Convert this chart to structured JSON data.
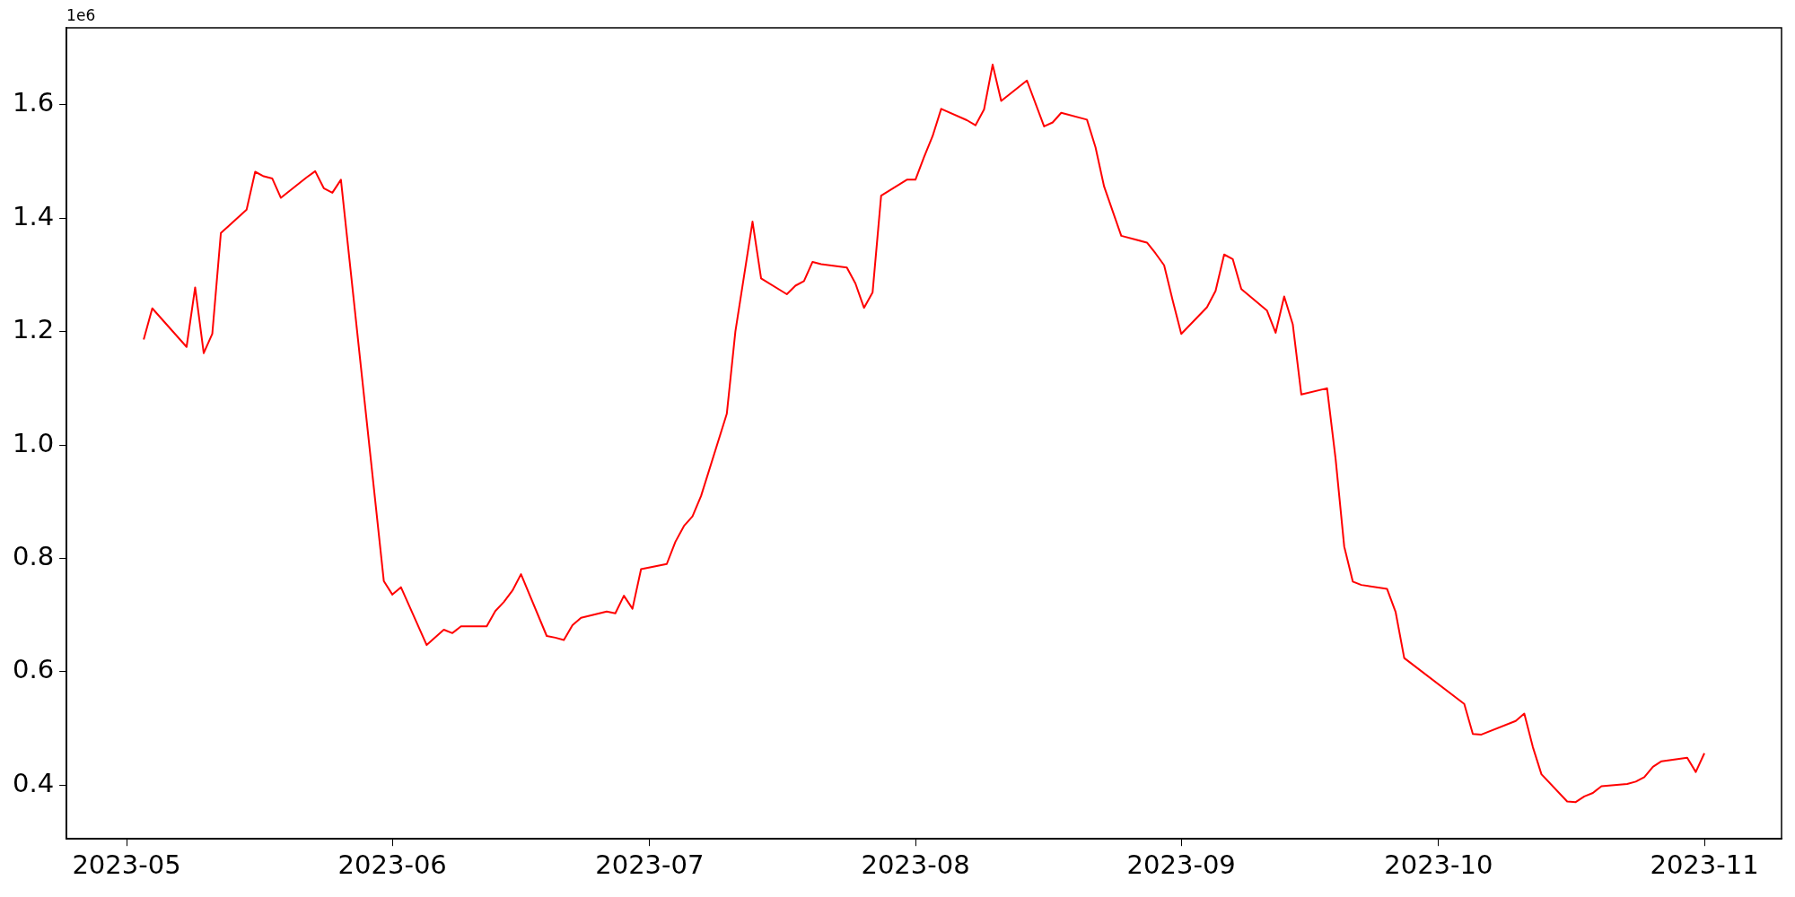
{
  "chart_data": {
    "type": "line",
    "color": "#ff0000",
    "x": [
      "2023-05-03",
      "2023-05-04",
      "2023-05-08",
      "2023-05-09",
      "2023-05-10",
      "2023-05-11",
      "2023-05-12",
      "2023-05-15",
      "2023-05-16",
      "2023-05-17",
      "2023-05-18",
      "2023-05-19",
      "2023-05-22",
      "2023-05-23",
      "2023-05-24",
      "2023-05-25",
      "2023-05-26",
      "2023-05-31",
      "2023-06-01",
      "2023-06-02",
      "2023-06-05",
      "2023-06-07",
      "2023-06-08",
      "2023-06-09",
      "2023-06-12",
      "2023-06-13",
      "2023-06-14",
      "2023-06-15",
      "2023-06-16",
      "2023-06-19",
      "2023-06-20",
      "2023-06-21",
      "2023-06-22",
      "2023-06-23",
      "2023-06-26",
      "2023-06-27",
      "2023-06-28",
      "2023-06-29",
      "2023-06-30",
      "2023-07-03",
      "2023-07-04",
      "2023-07-05",
      "2023-07-06",
      "2023-07-07",
      "2023-07-10",
      "2023-07-11",
      "2023-07-13",
      "2023-07-14",
      "2023-07-17",
      "2023-07-18",
      "2023-07-19",
      "2023-07-20",
      "2023-07-21",
      "2023-07-24",
      "2023-07-25",
      "2023-07-26",
      "2023-07-27",
      "2023-07-28",
      "2023-07-31",
      "2023-08-01",
      "2023-08-02",
      "2023-08-03",
      "2023-08-04",
      "2023-08-07",
      "2023-08-08",
      "2023-08-09",
      "2023-08-10",
      "2023-08-11",
      "2023-08-14",
      "2023-08-16",
      "2023-08-17",
      "2023-08-18",
      "2023-08-21",
      "2023-08-22",
      "2023-08-23",
      "2023-08-25",
      "2023-08-28",
      "2023-08-29",
      "2023-08-30",
      "2023-08-31",
      "2023-09-01",
      "2023-09-04",
      "2023-09-05",
      "2023-09-06",
      "2023-09-07",
      "2023-09-08",
      "2023-09-11",
      "2023-09-12",
      "2023-09-13",
      "2023-09-14",
      "2023-09-15",
      "2023-09-18",
      "2023-09-19",
      "2023-09-20",
      "2023-09-21",
      "2023-09-22",
      "2023-09-25",
      "2023-09-26",
      "2023-09-27",
      "2023-10-04",
      "2023-10-05",
      "2023-10-06",
      "2023-10-10",
      "2023-10-11",
      "2023-10-12",
      "2023-10-13",
      "2023-10-16",
      "2023-10-17",
      "2023-10-18",
      "2023-10-19",
      "2023-10-20",
      "2023-10-23",
      "2023-10-24",
      "2023-10-25",
      "2023-10-26",
      "2023-10-27",
      "2023-10-30",
      "2023-10-31",
      "2023-11-01"
    ],
    "values": [
      1.186,
      1.241,
      1.173,
      1.278,
      1.162,
      1.196,
      1.374,
      1.415,
      1.482,
      1.474,
      1.47,
      1.436,
      1.472,
      1.483,
      1.453,
      1.445,
      1.468,
      0.76,
      0.736,
      0.749,
      0.647,
      0.674,
      0.668,
      0.68,
      0.68,
      0.707,
      0.723,
      0.743,
      0.772,
      0.663,
      0.66,
      0.656,
      0.682,
      0.695,
      0.706,
      0.703,
      0.734,
      0.711,
      0.781,
      0.79,
      0.829,
      0.857,
      0.874,
      0.91,
      1.055,
      1.2,
      1.394,
      1.294,
      1.266,
      1.281,
      1.289,
      1.323,
      1.319,
      1.313,
      1.285,
      1.242,
      1.269,
      1.44,
      1.468,
      1.468,
      1.508,
      1.545,
      1.593,
      1.573,
      1.564,
      1.592,
      1.671,
      1.607,
      1.643,
      1.562,
      1.569,
      1.586,
      1.574,
      1.525,
      1.456,
      1.369,
      1.357,
      1.338,
      1.317,
      1.255,
      1.196,
      1.243,
      1.272,
      1.336,
      1.328,
      1.275,
      1.237,
      1.198,
      1.262,
      1.213,
      1.089,
      1.1,
      0.975,
      0.821,
      0.759,
      0.753,
      0.746,
      0.705,
      0.624,
      0.543,
      0.49,
      0.489,
      0.513,
      0.526,
      0.467,
      0.419,
      0.371,
      0.37,
      0.38,
      0.386,
      0.398,
      0.402,
      0.406,
      0.414,
      0.432,
      0.442,
      0.448,
      0.423,
      0.456
    ],
    "xlim": [
      "2023-04-24",
      "2023-11-10"
    ],
    "xticks": [
      "2023-05",
      "2023-06",
      "2023-07",
      "2023-08",
      "2023-09",
      "2023-10",
      "2023-11"
    ],
    "ylim": [
      0.305,
      1.736
    ],
    "yticks": [
      {
        "value": 0.4,
        "label": "0.4"
      },
      {
        "value": 0.6,
        "label": "0.6"
      },
      {
        "value": 0.8,
        "label": "0.8"
      },
      {
        "value": 1.0,
        "label": "1.0"
      },
      {
        "value": 1.2,
        "label": "1.2"
      },
      {
        "value": 1.4,
        "label": "1.4"
      },
      {
        "value": 1.6,
        "label": "1.6"
      }
    ],
    "annotations": [
      "1e6"
    ]
  }
}
